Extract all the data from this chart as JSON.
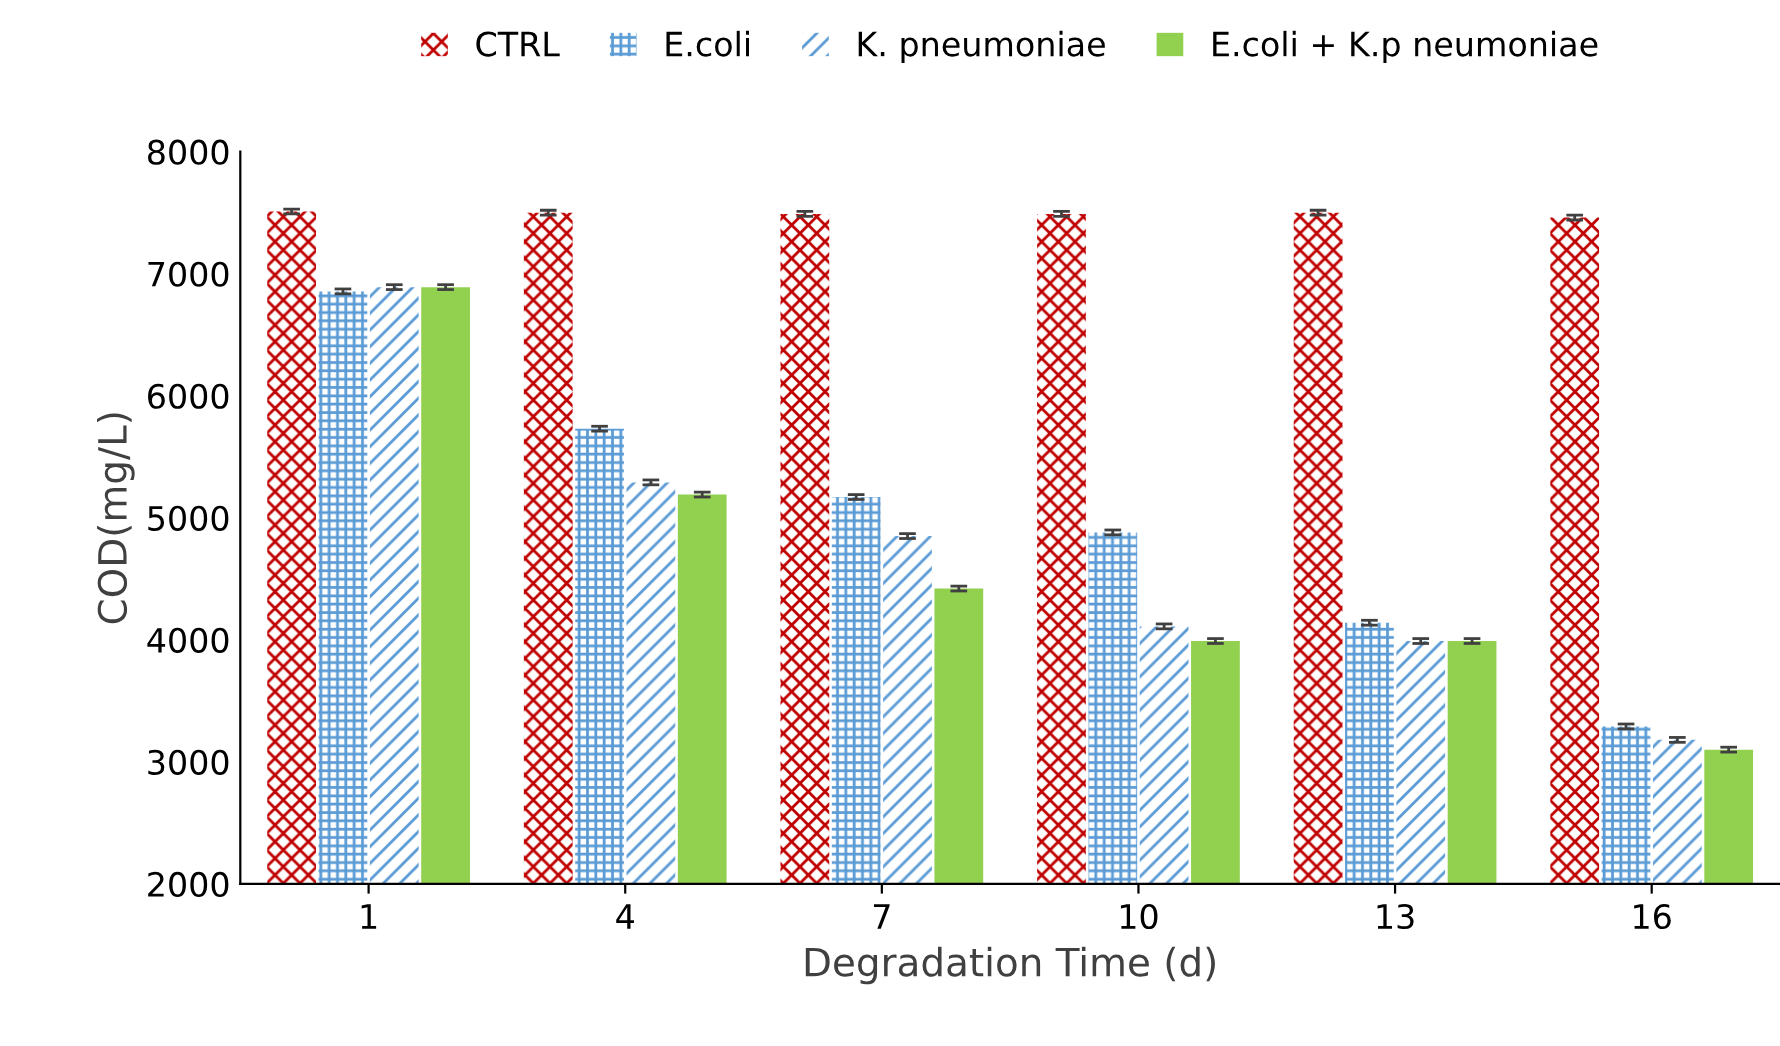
{
  "chart_data": {
    "type": "bar",
    "xlabel": "Degradation Time (d)",
    "ylabel": "COD(mg/L)",
    "categories": [
      "1",
      "4",
      "7",
      "10",
      "13",
      "16"
    ],
    "series": [
      {
        "name": "CTRL",
        "color": "#c00000",
        "values": [
          7510,
          7500,
          7490,
          7490,
          7500,
          7460
        ],
        "errors": [
          20,
          20,
          20,
          20,
          20,
          20
        ]
      },
      {
        "name": "E.coli",
        "color": "#5b9bd5",
        "values": [
          6855,
          5730,
          5170,
          4880,
          4140,
          3290
        ],
        "errors": [
          20,
          20,
          20,
          20,
          20,
          20
        ]
      },
      {
        "name": "K. pneumoniae",
        "color": "#5b9bd5",
        "values": [
          6890,
          5290,
          4850,
          4110,
          3990,
          3180
        ],
        "errors": [
          20,
          20,
          20,
          20,
          20,
          20
        ]
      },
      {
        "name": "E.coli + K.p neumoniae",
        "color": "#92d050",
        "values": [
          6890,
          5190,
          4420,
          3990,
          3990,
          3100
        ],
        "errors": [
          20,
          20,
          20,
          20,
          20,
          20
        ]
      }
    ],
    "ylim": [
      2000,
      8000
    ],
    "yticks": [
      2000,
      3000,
      4000,
      5000,
      6000,
      7000,
      8000
    ],
    "grid": false,
    "legend": "top"
  }
}
